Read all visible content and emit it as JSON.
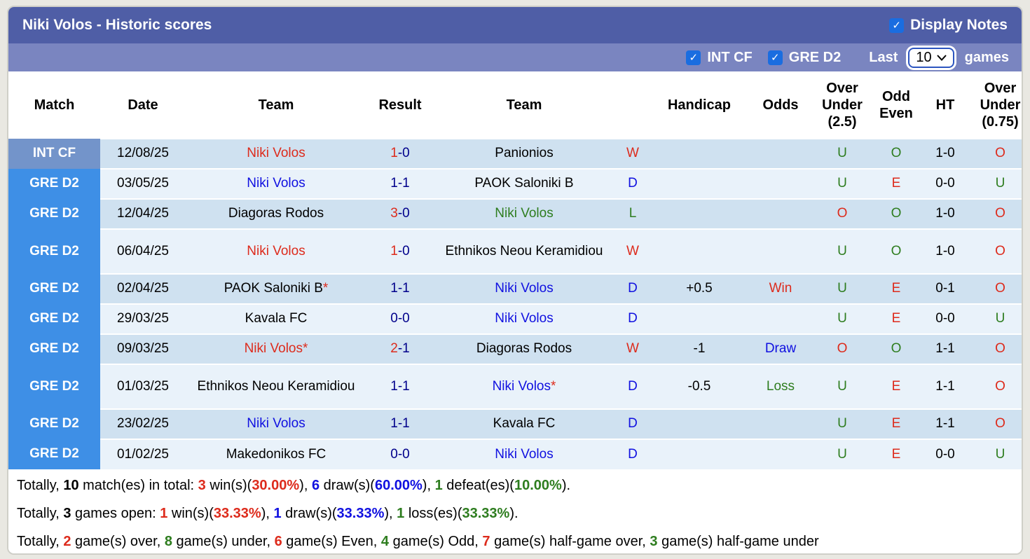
{
  "palette": {
    "red": "#dd2b1c",
    "blue": "#1010e0",
    "green": "#2e7d1f",
    "navy": "#00008b",
    "black": "#000000"
  },
  "header": {
    "title": "Niki Volos - Historic scores",
    "display_notes": {
      "label": "Display Notes",
      "checked": true
    },
    "filters": [
      {
        "id": "int-cf",
        "label": "INT CF",
        "checked": true
      },
      {
        "id": "gre-d2",
        "label": "GRE D2",
        "checked": true
      }
    ],
    "last_label": "Last",
    "games_value": "10",
    "games_label": "games"
  },
  "columns": [
    {
      "label": "Match"
    },
    {
      "label": "Date"
    },
    {
      "label": "Team"
    },
    {
      "label": "Result"
    },
    {
      "label": "Team"
    },
    {
      "label": ""
    },
    {
      "label": "Handicap"
    },
    {
      "label": "Odds"
    },
    {
      "label": "Over\nUnder\n(2.5)"
    },
    {
      "label": "Odd\nEven"
    },
    {
      "label": "HT"
    },
    {
      "label": "Over\nUnder\n(0.75)"
    }
  ],
  "rows": [
    {
      "league": "INT CF",
      "league_type": "int",
      "date": "12/08/25",
      "home": {
        "name": "Niki Volos",
        "color": "red",
        "star": false
      },
      "result": [
        {
          "t": "1",
          "c": "red"
        },
        {
          "t": "-0",
          "c": "navy"
        }
      ],
      "away": {
        "name": "Panionios",
        "color": "black",
        "star": false
      },
      "wdl": {
        "t": "W",
        "c": "red"
      },
      "handicap": "",
      "odds": {
        "t": "",
        "c": "black"
      },
      "ou25": {
        "t": "U",
        "c": "green"
      },
      "oe": {
        "t": "O",
        "c": "green"
      },
      "ht": "1-0",
      "ou075": {
        "t": "O",
        "c": "red"
      },
      "tall": false
    },
    {
      "league": "GRE D2",
      "league_type": "gre",
      "date": "03/05/25",
      "home": {
        "name": "Niki Volos",
        "color": "blue",
        "star": false
      },
      "result": [
        {
          "t": "1-1",
          "c": "navy"
        }
      ],
      "away": {
        "name": "PAOK Saloniki B",
        "color": "black",
        "star": false
      },
      "wdl": {
        "t": "D",
        "c": "blue"
      },
      "handicap": "",
      "odds": {
        "t": "",
        "c": "black"
      },
      "ou25": {
        "t": "U",
        "c": "green"
      },
      "oe": {
        "t": "E",
        "c": "red"
      },
      "ht": "0-0",
      "ou075": {
        "t": "U",
        "c": "green"
      },
      "tall": false
    },
    {
      "league": "GRE D2",
      "league_type": "gre",
      "date": "12/04/25",
      "home": {
        "name": "Diagoras Rodos",
        "color": "black",
        "star": false
      },
      "result": [
        {
          "t": "3",
          "c": "red"
        },
        {
          "t": "-0",
          "c": "navy"
        }
      ],
      "away": {
        "name": "Niki Volos",
        "color": "green",
        "star": false
      },
      "wdl": {
        "t": "L",
        "c": "green"
      },
      "handicap": "",
      "odds": {
        "t": "",
        "c": "black"
      },
      "ou25": {
        "t": "O",
        "c": "red"
      },
      "oe": {
        "t": "O",
        "c": "green"
      },
      "ht": "1-0",
      "ou075": {
        "t": "O",
        "c": "red"
      },
      "tall": false
    },
    {
      "league": "GRE D2",
      "league_type": "gre",
      "date": "06/04/25",
      "home": {
        "name": "Niki Volos",
        "color": "red",
        "star": false
      },
      "result": [
        {
          "t": "1",
          "c": "red"
        },
        {
          "t": "-0",
          "c": "navy"
        }
      ],
      "away": {
        "name": "Ethnikos Neou Keramidiou",
        "color": "black",
        "star": false
      },
      "wdl": {
        "t": "W",
        "c": "red"
      },
      "handicap": "",
      "odds": {
        "t": "",
        "c": "black"
      },
      "ou25": {
        "t": "U",
        "c": "green"
      },
      "oe": {
        "t": "O",
        "c": "green"
      },
      "ht": "1-0",
      "ou075": {
        "t": "O",
        "c": "red"
      },
      "tall": true
    },
    {
      "league": "GRE D2",
      "league_type": "gre",
      "date": "02/04/25",
      "home": {
        "name": "PAOK Saloniki B",
        "color": "black",
        "star": true
      },
      "result": [
        {
          "t": "1-1",
          "c": "navy"
        }
      ],
      "away": {
        "name": "Niki Volos",
        "color": "blue",
        "star": false
      },
      "wdl": {
        "t": "D",
        "c": "blue"
      },
      "handicap": "+0.5",
      "odds": {
        "t": "Win",
        "c": "red"
      },
      "ou25": {
        "t": "U",
        "c": "green"
      },
      "oe": {
        "t": "E",
        "c": "red"
      },
      "ht": "0-1",
      "ou075": {
        "t": "O",
        "c": "red"
      },
      "tall": false
    },
    {
      "league": "GRE D2",
      "league_type": "gre",
      "date": "29/03/25",
      "home": {
        "name": "Kavala FC",
        "color": "black",
        "star": false
      },
      "result": [
        {
          "t": "0-0",
          "c": "navy"
        }
      ],
      "away": {
        "name": "Niki Volos",
        "color": "blue",
        "star": false
      },
      "wdl": {
        "t": "D",
        "c": "blue"
      },
      "handicap": "",
      "odds": {
        "t": "",
        "c": "black"
      },
      "ou25": {
        "t": "U",
        "c": "green"
      },
      "oe": {
        "t": "E",
        "c": "red"
      },
      "ht": "0-0",
      "ou075": {
        "t": "U",
        "c": "green"
      },
      "tall": false
    },
    {
      "league": "GRE D2",
      "league_type": "gre",
      "date": "09/03/25",
      "home": {
        "name": "Niki Volos",
        "color": "red",
        "star": true
      },
      "result": [
        {
          "t": "2",
          "c": "red"
        },
        {
          "t": "-1",
          "c": "navy"
        }
      ],
      "away": {
        "name": "Diagoras Rodos",
        "color": "black",
        "star": false
      },
      "wdl": {
        "t": "W",
        "c": "red"
      },
      "handicap": "-1",
      "odds": {
        "t": "Draw",
        "c": "blue"
      },
      "ou25": {
        "t": "O",
        "c": "red"
      },
      "oe": {
        "t": "O",
        "c": "green"
      },
      "ht": "1-1",
      "ou075": {
        "t": "O",
        "c": "red"
      },
      "tall": false
    },
    {
      "league": "GRE D2",
      "league_type": "gre",
      "date": "01/03/25",
      "home": {
        "name": "Ethnikos Neou Keramidiou",
        "color": "black",
        "star": false
      },
      "result": [
        {
          "t": "1-1",
          "c": "navy"
        }
      ],
      "away": {
        "name": "Niki Volos",
        "color": "blue",
        "star": true
      },
      "wdl": {
        "t": "D",
        "c": "blue"
      },
      "handicap": "-0.5",
      "odds": {
        "t": "Loss",
        "c": "green"
      },
      "ou25": {
        "t": "U",
        "c": "green"
      },
      "oe": {
        "t": "E",
        "c": "red"
      },
      "ht": "1-1",
      "ou075": {
        "t": "O",
        "c": "red"
      },
      "tall": true
    },
    {
      "league": "GRE D2",
      "league_type": "gre",
      "date": "23/02/25",
      "home": {
        "name": "Niki Volos",
        "color": "blue",
        "star": false
      },
      "result": [
        {
          "t": "1-1",
          "c": "navy"
        }
      ],
      "away": {
        "name": "Kavala FC",
        "color": "black",
        "star": false
      },
      "wdl": {
        "t": "D",
        "c": "blue"
      },
      "handicap": "",
      "odds": {
        "t": "",
        "c": "black"
      },
      "ou25": {
        "t": "U",
        "c": "green"
      },
      "oe": {
        "t": "E",
        "c": "red"
      },
      "ht": "1-1",
      "ou075": {
        "t": "O",
        "c": "red"
      },
      "tall": false
    },
    {
      "league": "GRE D2",
      "league_type": "gre",
      "date": "01/02/25",
      "home": {
        "name": "Makedonikos FC",
        "color": "black",
        "star": false
      },
      "result": [
        {
          "t": "0-0",
          "c": "navy"
        }
      ],
      "away": {
        "name": "Niki Volos",
        "color": "blue",
        "star": false
      },
      "wdl": {
        "t": "D",
        "c": "blue"
      },
      "handicap": "",
      "odds": {
        "t": "",
        "c": "black"
      },
      "ou25": {
        "t": "U",
        "c": "green"
      },
      "oe": {
        "t": "E",
        "c": "red"
      },
      "ht": "0-0",
      "ou075": {
        "t": "U",
        "c": "green"
      },
      "tall": false
    }
  ],
  "summary_lines": [
    [
      {
        "t": "Totally, "
      },
      {
        "t": "10",
        "b": 1
      },
      {
        "t": " match(es) in total: "
      },
      {
        "t": "3",
        "c": "red",
        "b": 1
      },
      {
        "t": " win(s)("
      },
      {
        "t": "30.00%",
        "c": "red",
        "b": 1
      },
      {
        "t": "), "
      },
      {
        "t": "6",
        "c": "blue",
        "b": 1
      },
      {
        "t": " draw(s)("
      },
      {
        "t": "60.00%",
        "c": "blue",
        "b": 1
      },
      {
        "t": "), "
      },
      {
        "t": "1",
        "c": "green",
        "b": 1
      },
      {
        "t": " defeat(es)("
      },
      {
        "t": "10.00%",
        "c": "green",
        "b": 1
      },
      {
        "t": ")."
      }
    ],
    [
      {
        "t": "Totally, "
      },
      {
        "t": "3",
        "b": 1
      },
      {
        "t": " games open: "
      },
      {
        "t": "1",
        "c": "red",
        "b": 1
      },
      {
        "t": " win(s)("
      },
      {
        "t": "33.33%",
        "c": "red",
        "b": 1
      },
      {
        "t": "), "
      },
      {
        "t": "1",
        "c": "blue",
        "b": 1
      },
      {
        "t": " draw(s)("
      },
      {
        "t": "33.33%",
        "c": "blue",
        "b": 1
      },
      {
        "t": "), "
      },
      {
        "t": "1",
        "c": "green",
        "b": 1
      },
      {
        "t": " loss(es)("
      },
      {
        "t": "33.33%",
        "c": "green",
        "b": 1
      },
      {
        "t": ")."
      }
    ],
    [
      {
        "t": "Totally, "
      },
      {
        "t": "2",
        "c": "red",
        "b": 1
      },
      {
        "t": " game(s) over, "
      },
      {
        "t": "8",
        "c": "green",
        "b": 1
      },
      {
        "t": " game(s) under, "
      },
      {
        "t": "6",
        "c": "red",
        "b": 1
      },
      {
        "t": " game(s) Even, "
      },
      {
        "t": "4",
        "c": "green",
        "b": 1
      },
      {
        "t": " game(s) Odd, "
      },
      {
        "t": "7",
        "c": "red",
        "b": 1
      },
      {
        "t": " game(s) half-game over, "
      },
      {
        "t": "3",
        "c": "green",
        "b": 1
      },
      {
        "t": " game(s) half-game under"
      }
    ]
  ]
}
